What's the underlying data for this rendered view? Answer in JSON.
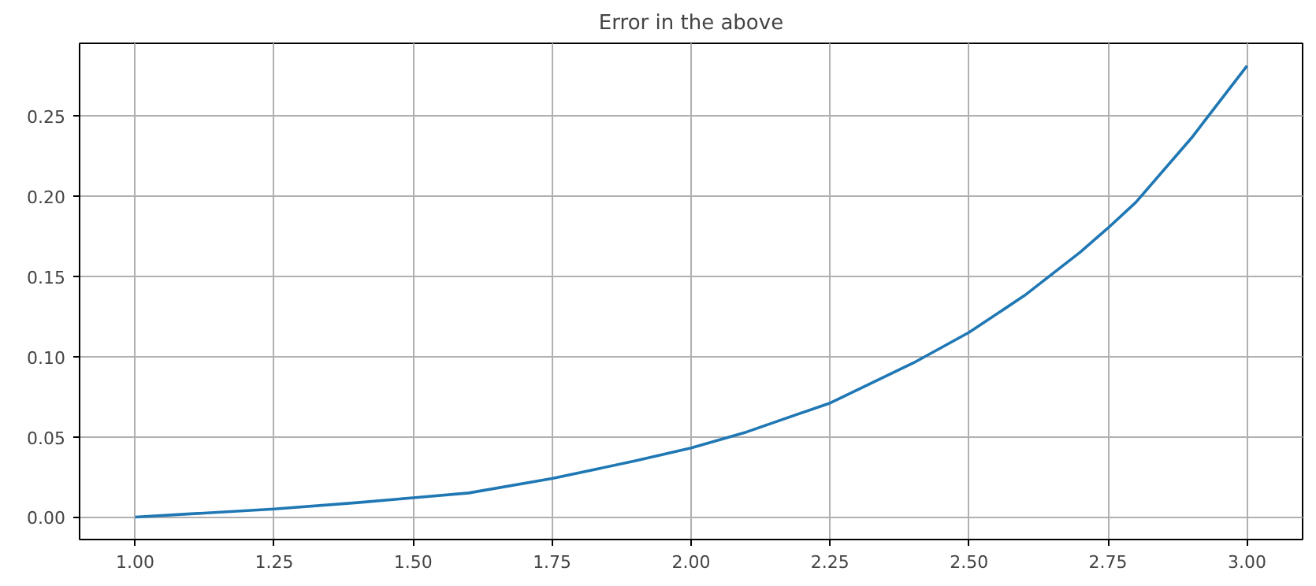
{
  "chart_data": {
    "type": "line",
    "title": "Error in the above",
    "x": [
      1.0,
      1.1,
      1.25,
      1.4,
      1.5,
      1.6,
      1.75,
      1.9,
      2.0,
      2.1,
      2.25,
      2.4,
      2.5,
      2.6,
      2.7,
      2.75,
      2.8,
      2.9,
      3.0
    ],
    "series": [
      {
        "color": "#1f77b4",
        "values": [
          0.0,
          0.002,
          0.005,
          0.009,
          0.012,
          0.015,
          0.024,
          0.035,
          0.043,
          0.053,
          0.071,
          0.096,
          0.115,
          0.138,
          0.165,
          0.18,
          0.196,
          0.236,
          0.281
        ]
      }
    ],
    "xlim": [
      0.9,
      3.1
    ],
    "ylim": [
      -0.014,
      0.295
    ],
    "xticks": [
      {
        "value": 1.0,
        "label": "1.00"
      },
      {
        "value": 1.25,
        "label": "1.25"
      },
      {
        "value": 1.5,
        "label": "1.50"
      },
      {
        "value": 1.75,
        "label": "1.75"
      },
      {
        "value": 2.0,
        "label": "2.00"
      },
      {
        "value": 2.25,
        "label": "2.25"
      },
      {
        "value": 2.5,
        "label": "2.50"
      },
      {
        "value": 2.75,
        "label": "2.75"
      },
      {
        "value": 3.0,
        "label": "3.00"
      }
    ],
    "yticks": [
      {
        "value": 0.0,
        "label": "0.00"
      },
      {
        "value": 0.05,
        "label": "0.05"
      },
      {
        "value": 0.1,
        "label": "0.10"
      },
      {
        "value": 0.15,
        "label": "0.15"
      },
      {
        "value": 0.2,
        "label": "0.20"
      },
      {
        "value": 0.25,
        "label": "0.25"
      }
    ],
    "grid": true,
    "line_style": "solid"
  }
}
